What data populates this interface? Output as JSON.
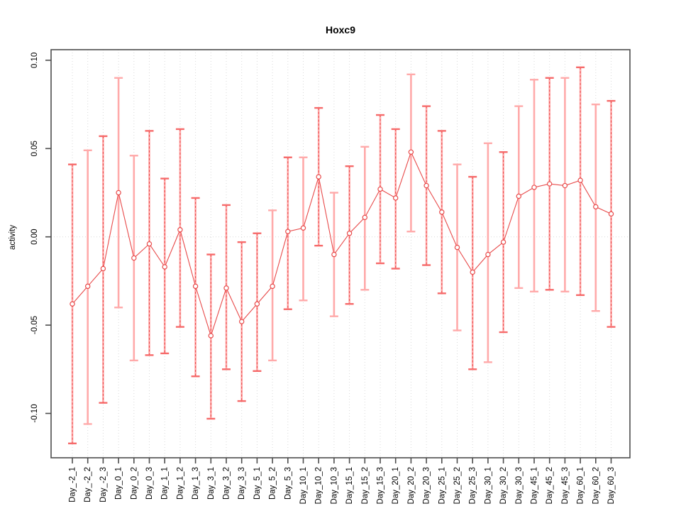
{
  "title": "Hoxc9",
  "ylabel": "activity",
  "colors": {
    "line_red": "#e84a4a",
    "stem_pink": "#ffaaaa",
    "striped_cap": "#f66a6a",
    "grid_gray": "#d9d9d9",
    "axis_gray": "#4c4c4c",
    "marker_fill": "#ffffff",
    "text_black": "#000000"
  },
  "chart_data": {
    "type": "line",
    "subtype": "points-with-error-bars",
    "title": "Hoxc9",
    "xlabel": "",
    "ylabel": "activity",
    "ylim": [
      -0.125,
      0.107
    ],
    "yticks": [
      0.1,
      0.05,
      0.0,
      -0.05,
      -0.1
    ],
    "ytick_labels": [
      "0.10",
      "0.05",
      "0.00",
      "-0.05",
      "-0.10"
    ],
    "grid": "dotted vertical gridline at every category; dotted horizontal reference line at y=0; no legend",
    "categories": [
      "Day_-2_1",
      "Day_-2_2",
      "Day_-2_3",
      "Day_0_1",
      "Day_0_2",
      "Day_0_3",
      "Day_1_1",
      "Day_1_2",
      "Day_1_3",
      "Day_3_1",
      "Day_3_2",
      "Day_3_3",
      "Day_5_1",
      "Day_5_2",
      "Day_5_3",
      "Day_10_1",
      "Day_10_2",
      "Day_10_3",
      "Day_15_1",
      "Day_15_2",
      "Day_15_3",
      "Day_20_1",
      "Day_20_2",
      "Day_20_3",
      "Day_25_1",
      "Day_25_2",
      "Day_25_3",
      "Day_30_1",
      "Day_30_2",
      "Day_30_3",
      "Day_45_1",
      "Day_45_2",
      "Day_45_3",
      "Day_60_1",
      "Day_60_2",
      "Day_60_3"
    ],
    "series": [
      {
        "name": "activity",
        "values": [
          -0.038,
          -0.028,
          -0.018,
          0.025,
          -0.012,
          -0.004,
          -0.017,
          0.004,
          -0.028,
          -0.056,
          -0.029,
          -0.048,
          -0.038,
          -0.028,
          0.003,
          0.005,
          0.034,
          -0.01,
          0.002,
          0.011,
          0.027,
          0.022,
          0.048,
          0.029,
          0.014,
          -0.006,
          -0.02,
          -0.01,
          -0.003,
          0.023,
          0.028,
          0.03,
          0.029,
          0.032,
          0.017,
          0.013
        ],
        "upper": [
          0.041,
          0.049,
          0.057,
          0.09,
          0.046,
          0.06,
          0.033,
          0.061,
          0.022,
          -0.01,
          0.018,
          -0.003,
          0.002,
          0.015,
          0.045,
          0.045,
          0.073,
          0.025,
          0.04,
          0.051,
          0.069,
          0.061,
          0.092,
          0.074,
          0.06,
          0.041,
          0.034,
          0.053,
          0.048,
          0.074,
          0.089,
          0.09,
          0.09,
          0.096,
          0.075,
          0.077
        ],
        "lower": [
          -0.117,
          -0.106,
          -0.094,
          -0.04,
          -0.07,
          -0.067,
          -0.066,
          -0.051,
          -0.079,
          -0.103,
          -0.075,
          -0.093,
          -0.076,
          -0.07,
          -0.041,
          -0.036,
          -0.005,
          -0.045,
          -0.038,
          -0.03,
          -0.015,
          -0.018,
          0.003,
          -0.016,
          -0.032,
          -0.053,
          -0.075,
          -0.071,
          -0.054,
          -0.029,
          -0.031,
          -0.03,
          -0.031,
          -0.033,
          -0.042,
          -0.051
        ],
        "bar_style": [
          "striped",
          "solid",
          "striped",
          "solid",
          "solid",
          "striped",
          "striped",
          "striped",
          "striped",
          "striped",
          "striped",
          "striped",
          "striped",
          "solid",
          "striped",
          "solid",
          "striped",
          "solid",
          "striped",
          "solid",
          "striped",
          "striped",
          "solid",
          "striped",
          "striped",
          "solid",
          "striped",
          "solid",
          "striped",
          "solid",
          "solid",
          "striped",
          "solid",
          "striped",
          "solid",
          "striped"
        ]
      }
    ]
  }
}
